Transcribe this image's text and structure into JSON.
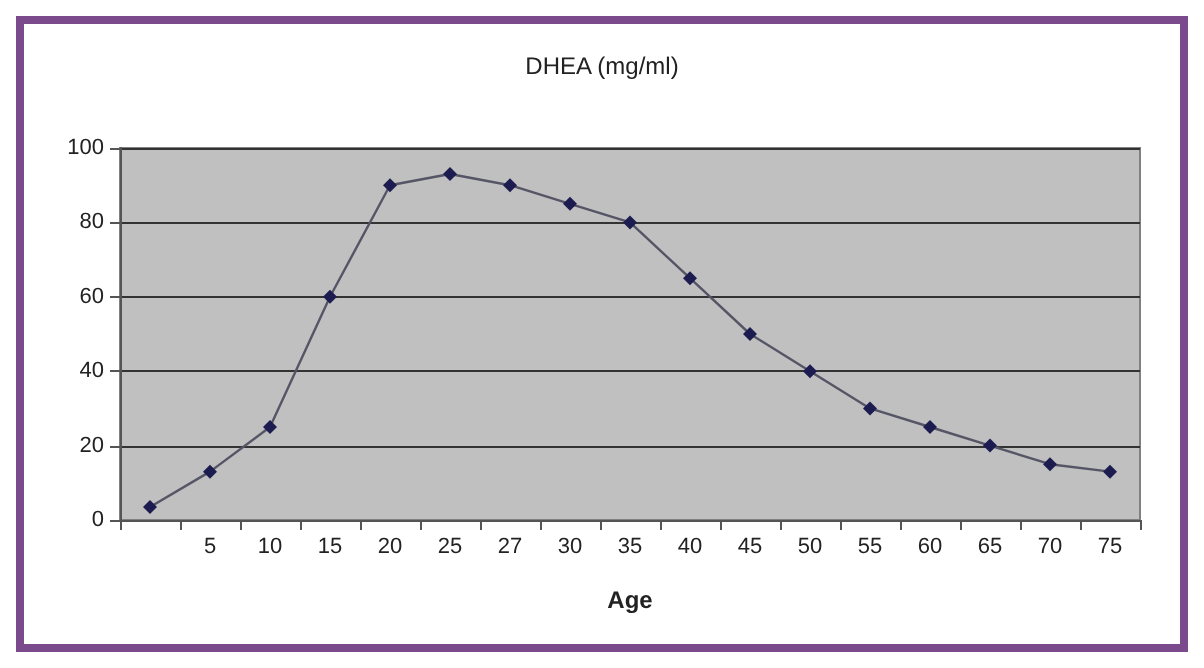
{
  "chart_data": {
    "type": "line",
    "title": "DHEA (mg/ml)",
    "xlabel": "Age",
    "categories": [
      null,
      "5",
      "10",
      "15",
      "20",
      "25",
      "27",
      "30",
      "35",
      "40",
      "45",
      "50",
      "55",
      "60",
      "65",
      "70",
      "75"
    ],
    "series": [
      {
        "color": "#1c1c50",
        "values": [
          3.5,
          13,
          25,
          60,
          90,
          93,
          90,
          85,
          80,
          65,
          50,
          40,
          30,
          25,
          20,
          15,
          13
        ]
      }
    ],
    "ylim": [
      0,
      100
    ],
    "yticks": [
      0,
      20,
      40,
      60,
      80,
      100
    ],
    "grid": "y",
    "marker": "diamond",
    "line_style": "solid"
  }
}
